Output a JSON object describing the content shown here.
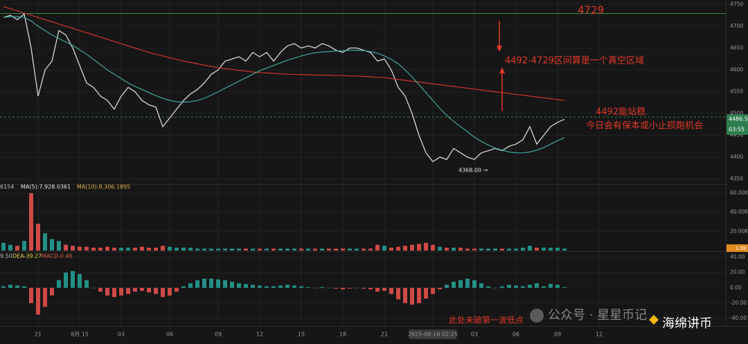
{
  "chart_data": [
    {
      "type": "line",
      "categories": [
        null,
        null,
        null,
        null,
        null,
        "21",
        null,
        null,
        null,
        null,
        null,
        "8月 15",
        null,
        null,
        null,
        null,
        null,
        "03",
        null,
        null,
        null,
        null,
        null,
        null,
        "06",
        null,
        null,
        null,
        null,
        null,
        null,
        "09",
        null,
        null,
        null,
        null,
        null,
        "12",
        null,
        null,
        null,
        null,
        null,
        "15",
        null,
        null,
        null,
        null,
        null,
        "18",
        null,
        null,
        null,
        null,
        null,
        "21",
        null,
        null,
        null,
        null,
        null,
        null,
        "2025-08-16 02:25",
        null,
        null,
        null,
        null,
        null,
        "03",
        null,
        null,
        null,
        null,
        null,
        "06",
        null,
        null,
        null,
        null,
        null,
        "09",
        null,
        null,
        null,
        null,
        null,
        "12"
      ],
      "series": [
        {
          "color": "#d8d8d8",
          "values": [
            4720,
            4725,
            4715,
            4728,
            4650,
            4540,
            4600,
            4620,
            4690,
            4680,
            4650,
            4610,
            4570,
            4560,
            4540,
            4530,
            4510,
            4540,
            4560,
            4550,
            4530,
            4520,
            4515,
            4470,
            4490,
            4510,
            4530,
            4545,
            4555,
            4570,
            4590,
            4600,
            4620,
            4625,
            4630,
            4620,
            4640,
            4630,
            4640,
            4620,
            4640,
            4655,
            4660,
            4650,
            4655,
            4650,
            4660,
            4655,
            4645,
            4640,
            4650,
            4650,
            4645,
            4640,
            4620,
            4625,
            4600,
            4560,
            4540,
            4500,
            4450,
            4410,
            4390,
            4400,
            4395,
            4420,
            4410,
            4400,
            4395,
            4410,
            4415,
            4420,
            4415,
            4425,
            4430,
            4440,
            4470,
            4430,
            4450,
            4470,
            4480,
            4487,
            null,
            null,
            null,
            null,
            null
          ]
        },
        {
          "color": "#d0342c",
          "values": [
            4745,
            4740,
            4735,
            4730,
            4725,
            4720,
            4715,
            4710,
            4705,
            4700,
            4695,
            4690,
            4685,
            4680,
            4675,
            4670,
            4665,
            4660,
            4655,
            4650,
            4645,
            4640,
            4636,
            4632,
            4628,
            4624,
            4620,
            4617,
            4614,
            4611,
            4608,
            4605,
            4603,
            4601,
            4599,
            4597,
            4595,
            4594,
            4593,
            4592,
            4591,
            4590,
            4590,
            4589,
            4589,
            4588,
            4588,
            4588,
            4587,
            4587,
            4586,
            4586,
            4585,
            4584,
            4583,
            4582,
            4580,
            4578,
            4576,
            4574,
            4572,
            4570,
            4568,
            4566,
            4564,
            4562,
            4560,
            4558,
            4556,
            4554,
            4552,
            4550,
            4548,
            4546,
            4544,
            4542,
            4540,
            4538,
            4536,
            4534,
            4532,
            4530,
            null,
            null,
            null,
            null,
            null
          ]
        },
        {
          "color": "#3fa7a0",
          "values": [
            4720,
            4722,
            4722,
            4720,
            4712,
            4700,
            4690,
            4680,
            4672,
            4664,
            4656,
            4646,
            4636,
            4624,
            4612,
            4600,
            4590,
            4580,
            4570,
            4562,
            4555,
            4548,
            4541,
            4535,
            4530,
            4527,
            4526,
            4527,
            4530,
            4535,
            4542,
            4550,
            4558,
            4566,
            4574,
            4582,
            4590,
            4598,
            4604,
            4610,
            4616,
            4622,
            4627,
            4632,
            4636,
            4639,
            4641,
            4642,
            4643,
            4644,
            4645,
            4645,
            4644,
            4642,
            4638,
            4632,
            4624,
            4614,
            4600,
            4584,
            4566,
            4548,
            4530,
            4512,
            4496,
            4482,
            4470,
            4458,
            4446,
            4436,
            4428,
            4421,
            4416,
            4412,
            4410,
            4410,
            4412,
            4416,
            4422,
            4430,
            4438,
            4445,
            null,
            null,
            null,
            null,
            null
          ]
        }
      ],
      "ylim": [
        4340,
        4760
      ],
      "yticks": [
        4350,
        4400,
        4450,
        4500,
        4550,
        4600,
        4650,
        4700,
        4750
      ],
      "hlines": [
        {
          "value": 4729,
          "color": "#3c8c3c",
          "dashed": false
        },
        {
          "value": 4492,
          "color": "#3c8c3c",
          "dashed": true
        }
      ],
      "level_label": "4729",
      "note_range": "4492-4729区间算是一个真空区域",
      "note_hold": "4492能站稳",
      "note_today": "今日会有保本或小止损跑机会",
      "low_label": "4368.00 →",
      "note_low": "此处未破第一波低点",
      "price_tag": "4486.5",
      "time_tag": "03:55"
    },
    {
      "type": "bar",
      "values": [
        8,
        6,
        5,
        10,
        60,
        28,
        18,
        12,
        10,
        6,
        5,
        4,
        4,
        3,
        3,
        4,
        3,
        3,
        3,
        3,
        4,
        3,
        3,
        5,
        4,
        3,
        3,
        3,
        2,
        2,
        2,
        2,
        2,
        2,
        2,
        2,
        2,
        2,
        2,
        2,
        2,
        2,
        2,
        2,
        2,
        2,
        2,
        2,
        2,
        2,
        2,
        2,
        2,
        2,
        6,
        5,
        3,
        4,
        5,
        6,
        7,
        8,
        6,
        4,
        3,
        3,
        3,
        2,
        2,
        2,
        2,
        2,
        2,
        2,
        2,
        3,
        5,
        3,
        3,
        3,
        3,
        2,
        null,
        null,
        null,
        null,
        null
      ],
      "up_color": "#26a69a",
      "down_color": "#ef5350",
      "ylim": [
        0,
        68
      ],
      "yticks": [
        {
          "value": 20,
          "label": "20.00K"
        },
        {
          "value": 40,
          "label": "40.00K"
        },
        {
          "value": 60,
          "label": "60.00K"
        }
      ],
      "legend_prefix": "6154",
      "legend": "MA(5):7,928.0361",
      "legend_2": "MA(10):8,306.1895",
      "axis_tag": "1.0K"
    },
    {
      "type": "bar",
      "values": [
        2,
        4,
        3,
        2,
        -20,
        -35,
        -25,
        -10,
        10,
        20,
        22,
        18,
        10,
        0,
        -5,
        -10,
        -12,
        -10,
        -8,
        -5,
        -4,
        -6,
        -8,
        -12,
        -10,
        -5,
        2,
        6,
        10,
        12,
        12,
        11,
        10,
        8,
        6,
        5,
        4,
        3,
        2,
        2,
        3,
        4,
        3,
        2,
        1,
        0,
        1,
        0,
        -1,
        -2,
        -1,
        0,
        -1,
        -2,
        -5,
        -4,
        -8,
        -15,
        -20,
        -22,
        -20,
        -14,
        -8,
        -2,
        4,
        8,
        10,
        12,
        10,
        6,
        2,
        0,
        2,
        4,
        3,
        2,
        4,
        6,
        2,
        5,
        4,
        1,
        null,
        null,
        null,
        null,
        null
      ],
      "up_color": "#26a69a",
      "down_color": "#ef5350",
      "ylim": [
        -49,
        46
      ],
      "yticks": [
        {
          "value": -40,
          "label": "-40.00"
        },
        {
          "value": -20,
          "label": "-20.00"
        },
        {
          "value": 0,
          "label": "0.00"
        },
        {
          "value": 20,
          "label": "20.00"
        },
        {
          "value": 40,
          "label": "40.00"
        }
      ],
      "legend_prefix": "9.50",
      "legend": "DEA-39.27",
      "legend_2": "MACD-0.46"
    }
  ],
  "watermark": {
    "account": "公众号 · 星星币记",
    "brand": "海绵讲币"
  }
}
